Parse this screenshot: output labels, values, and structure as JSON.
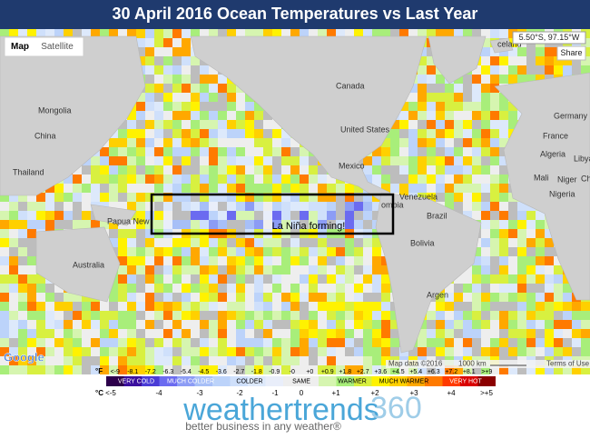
{
  "title": "30 April 2016 Ocean Temperatures vs Last Year",
  "map": {
    "controls": {
      "map": "Map",
      "satellite": "Satellite",
      "coords": "5.50°S, 97.15°W",
      "share": "Share"
    },
    "places": [
      "celand",
      "Canada",
      "United States",
      "Mexico",
      "Mongolia",
      "China",
      "Thailand",
      "Papua New",
      "Australia",
      "Venezuela",
      "ombia",
      "Brazil",
      "Bolivia",
      "Argen",
      "Germany",
      "France",
      "Algeria",
      "Libya",
      "Mali",
      "Niger",
      "Nigeria",
      "Chad"
    ],
    "annotation": "La Niña forming!",
    "footer": {
      "google": "Google",
      "data": "Map data ©2016",
      "scale": "1000 km",
      "terms": "Terms of Use"
    }
  },
  "legend": {
    "f_unit": "°F",
    "f_labels": [
      "<-9",
      "-8.1",
      "-7.2",
      "-6.3",
      "-5.4",
      "-4.5",
      "-3.6",
      "-2.7",
      "-1.8",
      "-0.9",
      "-0",
      "+0",
      "+0.9",
      "+1.8",
      "+2.7",
      "+3.6",
      "+4.5",
      "+5.4",
      "+6.3",
      "+7.2",
      "+8.1",
      ">+9"
    ],
    "colors": [
      "#2d004b",
      "#3b0f9e",
      "#4a3cd6",
      "#6b6bf0",
      "#8c9cf5",
      "#a7bff7",
      "#bcd3fa",
      "#cfe0fb",
      "#dde9fb",
      "#e9eefa",
      "#eeeeee",
      "#eeeeee",
      "#d6f5b0",
      "#a8ee7a",
      "#d8f040",
      "#fff200",
      "#ffd000",
      "#ffa800",
      "#ff7a00",
      "#ff3a00",
      "#d90000",
      "#8b0000"
    ],
    "categories": [
      "VERY COLD",
      "MUCH COLDER",
      "COLDER",
      "SAME",
      "WARMER",
      "MUCH WARMER",
      "VERY HOT"
    ],
    "c_unit": "°C",
    "c_labels": [
      "<-5",
      "-4",
      "-3",
      "-2",
      "-1",
      "0",
      "+1",
      "+2",
      "+3",
      "+4",
      ">+5"
    ]
  },
  "logo": {
    "name": "weathertrends",
    "number": "360",
    "tagline": "better business in any weather®"
  }
}
